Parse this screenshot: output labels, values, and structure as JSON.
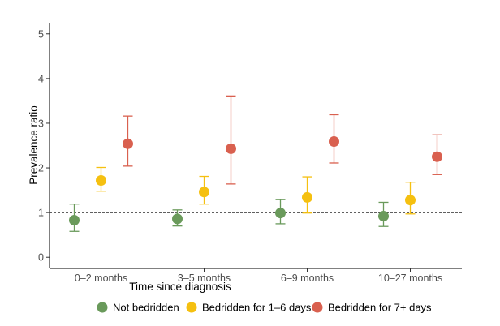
{
  "chart_data": {
    "type": "scatter",
    "subtype": "point-range",
    "title": "",
    "xlabel": "Time since diagnosis",
    "ylabel": "Prevalence ratio",
    "categories": [
      "0–2 months",
      "3–5 months",
      "6–9 months",
      "10–27 months"
    ],
    "yticks": [
      0,
      1,
      2,
      3,
      4,
      5
    ],
    "ylim": [
      -0.25,
      5.25
    ],
    "reference_line": 1,
    "grid": false,
    "legend_position": "bottom",
    "series": [
      {
        "name": "Not bedridden",
        "color": "#6a9a5b",
        "values": [
          0.83,
          0.86,
          0.99,
          0.92
        ],
        "lower": [
          0.58,
          0.7,
          0.75,
          0.69
        ],
        "upper": [
          1.19,
          1.06,
          1.29,
          1.23
        ]
      },
      {
        "name": "Bedridden for 1–6 days",
        "color": "#f5c010",
        "values": [
          1.72,
          1.46,
          1.34,
          1.28
        ],
        "lower": [
          1.48,
          1.19,
          0.99,
          0.97
        ],
        "upper": [
          2.01,
          1.81,
          1.8,
          1.68
        ]
      },
      {
        "name": "Bedridden for 7+ days",
        "color": "#d9604f",
        "values": [
          2.54,
          2.43,
          2.59,
          2.25
        ],
        "lower": [
          2.04,
          1.64,
          2.11,
          1.85
        ],
        "upper": [
          3.16,
          3.61,
          3.19,
          2.74
        ]
      }
    ]
  }
}
